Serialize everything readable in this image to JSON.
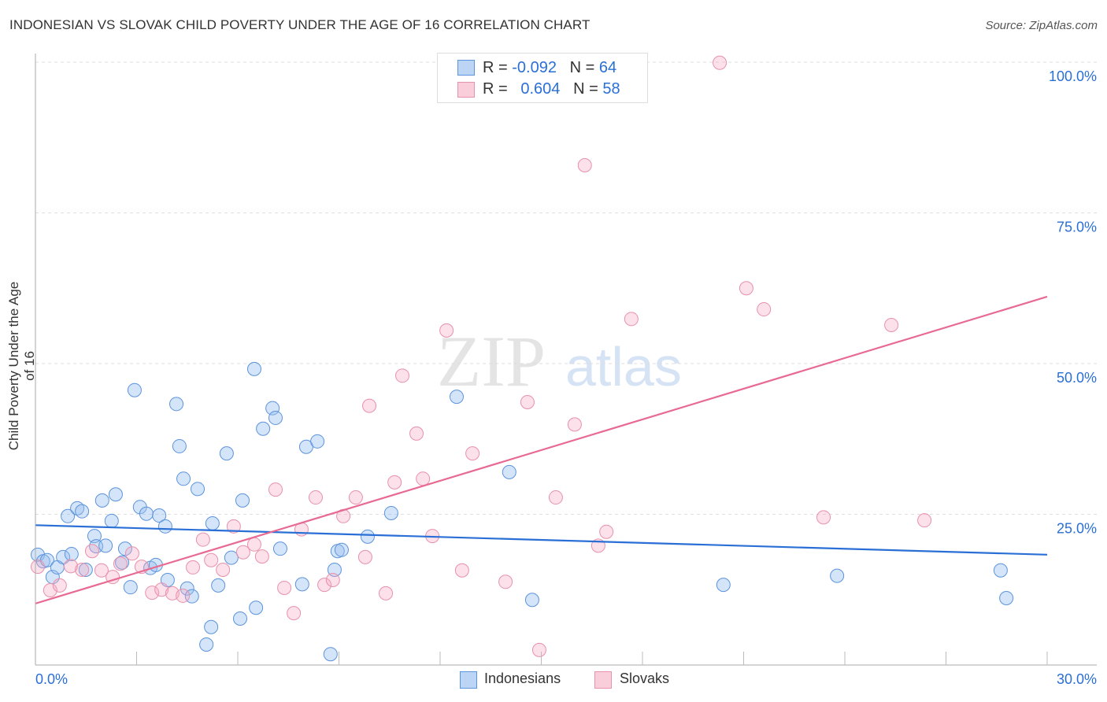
{
  "title": "INDONESIAN VS SLOVAK CHILD POVERTY UNDER THE AGE OF 16 CORRELATION CHART",
  "source": "Source: ZipAtlas.com",
  "watermark": "ZIPatlas",
  "legend": {
    "rows": [
      {
        "r_label": "R =",
        "r": "-0.092",
        "n_label": "N =",
        "n": "64"
      },
      {
        "r_label": "R =",
        "r": "0.604",
        "n_label": "N =",
        "n": "58"
      }
    ],
    "bottom": [
      "Indonesians",
      "Slovaks"
    ]
  },
  "chart_data": {
    "type": "scatter",
    "title": "INDONESIAN VS SLOVAK CHILD POVERTY UNDER THE AGE OF 16 CORRELATION CHART",
    "xlabel": "",
    "ylabel": "Child Poverty Under the Age of 16",
    "xlim": [
      0,
      30
    ],
    "ylim": [
      0,
      100
    ],
    "x_tick_labels": [
      "0.0%",
      "30.0%"
    ],
    "y_tick_labels": [
      "100.0%",
      "75.0%",
      "50.0%",
      "25.0%"
    ],
    "y_ticks": [
      100,
      75,
      50,
      25
    ],
    "grid": true,
    "colors": {
      "Indonesians": "#5b93dd",
      "Slovaks": "#e891ab",
      "Indonesians_line": "#2a6fd6",
      "Slovaks_line": "#e86a93"
    },
    "series": [
      {
        "name": "Indonesians",
        "trend": [
          [
            0,
            23.2
          ],
          [
            30,
            18.3
          ]
        ],
        "points": [
          [
            0.07,
            18.3
          ],
          [
            0.23,
            17.2
          ],
          [
            0.35,
            17.4
          ],
          [
            0.51,
            14.6
          ],
          [
            0.65,
            16.2
          ],
          [
            0.82,
            17.9
          ],
          [
            0.96,
            24.7
          ],
          [
            1.07,
            18.4
          ],
          [
            1.24,
            26.0
          ],
          [
            1.38,
            25.5
          ],
          [
            1.49,
            15.8
          ],
          [
            1.75,
            21.4
          ],
          [
            1.8,
            19.7
          ],
          [
            1.98,
            27.3
          ],
          [
            2.08,
            19.8
          ],
          [
            2.26,
            23.9
          ],
          [
            2.38,
            28.3
          ],
          [
            2.57,
            17.0
          ],
          [
            2.66,
            19.3
          ],
          [
            2.82,
            12.9
          ],
          [
            2.94,
            45.6
          ],
          [
            3.1,
            26.2
          ],
          [
            3.29,
            25.1
          ],
          [
            3.41,
            16.1
          ],
          [
            3.57,
            16.6
          ],
          [
            3.67,
            24.8
          ],
          [
            3.85,
            23.0
          ],
          [
            3.92,
            14.1
          ],
          [
            4.18,
            43.3
          ],
          [
            4.27,
            36.3
          ],
          [
            4.39,
            30.9
          ],
          [
            4.5,
            12.7
          ],
          [
            4.64,
            11.4
          ],
          [
            4.81,
            29.2
          ],
          [
            5.07,
            3.4
          ],
          [
            5.21,
            6.3
          ],
          [
            5.25,
            23.5
          ],
          [
            5.42,
            13.2
          ],
          [
            5.67,
            35.1
          ],
          [
            5.81,
            17.8
          ],
          [
            6.07,
            7.7
          ],
          [
            6.14,
            27.3
          ],
          [
            6.49,
            49.1
          ],
          [
            6.54,
            9.5
          ],
          [
            6.75,
            39.2
          ],
          [
            7.03,
            42.6
          ],
          [
            7.12,
            41.0
          ],
          [
            7.26,
            19.3
          ],
          [
            7.91,
            13.4
          ],
          [
            8.03,
            36.2
          ],
          [
            8.36,
            37.1
          ],
          [
            8.75,
            1.8
          ],
          [
            8.87,
            15.8
          ],
          [
            8.96,
            18.9
          ],
          [
            9.08,
            19.1
          ],
          [
            9.85,
            21.3
          ],
          [
            10.55,
            25.2
          ],
          [
            12.49,
            44.5
          ],
          [
            14.05,
            32.0
          ],
          [
            14.73,
            10.8
          ],
          [
            20.4,
            13.3
          ],
          [
            23.77,
            14.8
          ],
          [
            28.62,
            15.7
          ],
          [
            28.79,
            11.1
          ]
        ]
      },
      {
        "name": "Slovaks",
        "trend": [
          [
            0,
            10.2
          ],
          [
            30,
            61.1
          ]
        ],
        "points": [
          [
            0.07,
            16.3
          ],
          [
            0.44,
            12.4
          ],
          [
            0.72,
            13.2
          ],
          [
            1.05,
            16.4
          ],
          [
            1.38,
            15.8
          ],
          [
            1.68,
            18.9
          ],
          [
            1.96,
            15.7
          ],
          [
            2.29,
            14.6
          ],
          [
            2.52,
            16.8
          ],
          [
            2.87,
            18.5
          ],
          [
            3.15,
            16.3
          ],
          [
            3.46,
            12.0
          ],
          [
            3.74,
            12.5
          ],
          [
            4.06,
            11.9
          ],
          [
            4.37,
            11.5
          ],
          [
            4.67,
            16.2
          ],
          [
            4.97,
            20.8
          ],
          [
            5.21,
            17.4
          ],
          [
            5.56,
            15.8
          ],
          [
            5.88,
            23.0
          ],
          [
            6.16,
            18.7
          ],
          [
            6.49,
            20.0
          ],
          [
            6.72,
            18.0
          ],
          [
            7.12,
            29.1
          ],
          [
            7.38,
            12.8
          ],
          [
            7.66,
            8.6
          ],
          [
            7.89,
            22.5
          ],
          [
            8.31,
            27.8
          ],
          [
            8.57,
            13.3
          ],
          [
            8.82,
            14.1
          ],
          [
            9.13,
            24.7
          ],
          [
            9.5,
            27.8
          ],
          [
            9.78,
            17.9
          ],
          [
            9.9,
            43.0
          ],
          [
            10.39,
            11.9
          ],
          [
            10.65,
            30.3
          ],
          [
            10.88,
            48.0
          ],
          [
            11.3,
            38.4
          ],
          [
            11.49,
            30.9
          ],
          [
            11.77,
            21.4
          ],
          [
            12.19,
            55.5
          ],
          [
            12.65,
            15.7
          ],
          [
            12.96,
            35.1
          ],
          [
            13.94,
            13.8
          ],
          [
            14.59,
            43.6
          ],
          [
            14.94,
            2.5
          ],
          [
            15.43,
            27.8
          ],
          [
            15.99,
            39.9
          ],
          [
            16.29,
            82.9
          ],
          [
            16.69,
            19.8
          ],
          [
            16.93,
            22.1
          ],
          [
            17.67,
            57.4
          ],
          [
            20.29,
            99.9
          ],
          [
            21.08,
            62.5
          ],
          [
            21.6,
            59.0
          ],
          [
            23.37,
            24.5
          ],
          [
            25.38,
            56.4
          ],
          [
            26.36,
            24.0
          ]
        ]
      }
    ]
  }
}
